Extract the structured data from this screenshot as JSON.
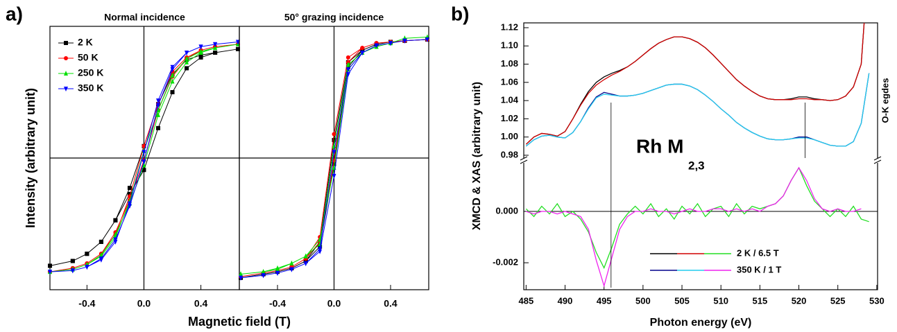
{
  "chart_data": [
    {
      "type": "hysteresis",
      "panel_label": "a)",
      "title": "Normal incidence",
      "x_label": "Magnetic field (T)",
      "y_label": "Intensity (arbitrary unit)",
      "xlim": [
        -0.66,
        0.67
      ],
      "ylim": [
        -1.1,
        1.1
      ],
      "xticks": [
        -0.4,
        {
          "value": 0,
          "label": "0.0"
        },
        0.4
      ],
      "x": [
        -0.66,
        -0.5,
        -0.4,
        -0.3,
        -0.2,
        -0.1,
        0,
        0.1,
        0.2,
        0.3,
        0.4,
        0.5,
        0.66,
        0.5,
        0.4,
        0.3,
        0.2,
        0.1,
        0,
        -0.1,
        -0.2,
        -0.3,
        -0.4,
        -0.5,
        -0.66
      ],
      "series": [
        {
          "name": "2 K",
          "color": "#000000",
          "marker": "square",
          "values": [
            -0.9,
            -0.86,
            -0.8,
            -0.7,
            -0.52,
            -0.3,
            -0.1,
            0.25,
            0.55,
            0.75,
            0.84,
            0.88,
            0.91,
            0.88,
            0.86,
            0.82,
            0.7,
            0.45,
            0.1,
            -0.25,
            -0.52,
            -0.7,
            -0.8,
            -0.86,
            -0.9
          ]
        },
        {
          "name": "50 K",
          "color": "#ff0000",
          "marker": "circle",
          "values": [
            -0.95,
            -0.92,
            -0.88,
            -0.8,
            -0.62,
            -0.35,
            -0.02,
            0.4,
            0.68,
            0.83,
            0.9,
            0.93,
            0.95,
            0.93,
            0.9,
            0.84,
            0.72,
            0.45,
            0.1,
            -0.32,
            -0.64,
            -0.8,
            -0.88,
            -0.92,
            -0.95
          ]
        },
        {
          "name": "250 K",
          "color": "#00e000",
          "marker": "triangle-up",
          "values": [
            -0.95,
            -0.93,
            -0.89,
            -0.81,
            -0.64,
            -0.38,
            -0.06,
            0.36,
            0.64,
            0.8,
            0.88,
            0.92,
            0.95,
            0.92,
            0.89,
            0.83,
            0.69,
            0.4,
            0.06,
            -0.36,
            -0.66,
            -0.82,
            -0.89,
            -0.93,
            -0.95
          ]
        },
        {
          "name": "350 K",
          "color": "#0000ff",
          "marker": "triangle-down",
          "values": [
            -0.95,
            -0.94,
            -0.91,
            -0.84,
            -0.68,
            -0.4,
            -0.03,
            0.44,
            0.74,
            0.88,
            0.93,
            0.95,
            0.97,
            0.95,
            0.93,
            0.88,
            0.76,
            0.48,
            0.05,
            -0.38,
            -0.7,
            -0.85,
            -0.91,
            -0.94,
            -0.95
          ]
        }
      ]
    },
    {
      "type": "hysteresis",
      "title": "50° grazing incidence",
      "xlim": [
        -0.67,
        0.67
      ],
      "ylim": [
        -1.1,
        1.1
      ],
      "xticks": [
        -0.4,
        {
          "value": 0,
          "label": "0.0"
        },
        0.4
      ],
      "x": [
        -0.66,
        -0.5,
        -0.4,
        -0.3,
        -0.2,
        -0.1,
        0,
        0.1,
        0.2,
        0.3,
        0.4,
        0.5,
        0.66,
        0.5,
        0.4,
        0.3,
        0.2,
        0.1,
        0,
        -0.1,
        -0.2,
        -0.3,
        -0.4,
        -0.5,
        -0.66
      ],
      "series": [
        {
          "color": "#000000",
          "marker": "square",
          "values": [
            -1.0,
            -0.97,
            -0.95,
            -0.92,
            -0.86,
            -0.74,
            -0.05,
            0.76,
            0.9,
            0.95,
            0.97,
            0.98,
            0.99,
            0.98,
            0.97,
            0.95,
            0.9,
            0.8,
            0.15,
            -0.7,
            -0.86,
            -0.92,
            -0.95,
            -0.97,
            -1.0
          ]
        },
        {
          "color": "#ff0000",
          "marker": "circle",
          "values": [
            -0.99,
            -0.96,
            -0.94,
            -0.91,
            -0.84,
            -0.7,
            -0.02,
            0.8,
            0.92,
            0.96,
            0.97,
            0.98,
            0.99,
            0.98,
            0.97,
            0.96,
            0.92,
            0.84,
            0.2,
            -0.66,
            -0.84,
            -0.91,
            -0.94,
            -0.96,
            -0.99
          ]
        },
        {
          "color": "#00e000",
          "marker": "triangle-up",
          "values": [
            -0.97,
            -0.95,
            -0.93,
            -0.88,
            -0.82,
            -0.68,
            -0.08,
            0.74,
            0.88,
            0.93,
            0.96,
            1.0,
            1.01,
            1.0,
            0.96,
            0.93,
            0.88,
            0.78,
            0.1,
            -0.72,
            -0.82,
            -0.88,
            -0.92,
            -0.95,
            -0.97
          ]
        },
        {
          "color": "#0000ff",
          "marker": "triangle-down",
          "values": [
            -1.0,
            -0.98,
            -0.96,
            -0.93,
            -0.88,
            -0.78,
            -0.15,
            0.7,
            0.88,
            0.94,
            0.96,
            0.98,
            0.99,
            0.98,
            0.96,
            0.94,
            0.88,
            0.74,
            0.05,
            -0.76,
            -0.88,
            -0.93,
            -0.96,
            -0.98,
            -1.0
          ]
        }
      ]
    },
    {
      "type": "spectra",
      "panel_label": "b)",
      "x_label": "Photon energy (eV)",
      "y_label": "XMCD & XAS (arbitrary unit)",
      "annotation": "Rh M",
      "annotation_subscript": "2,3",
      "edge_label": "O-K egdes",
      "xlim": [
        484.7,
        530.1
      ],
      "ylim": [
        0.9739,
        1.1253
      ],
      "y2lim": [
        -0.00305,
        0.00197
      ],
      "xticks": [
        485,
        490,
        495,
        500,
        505,
        510,
        515,
        520,
        525,
        530
      ],
      "yticks": [
        0.98,
        {
          "value": 1,
          "label": "1.00"
        },
        1.02,
        1.04,
        1.06,
        1.08,
        {
          "value": 1.1,
          "label": "1.10"
        },
        1.12
      ],
      "y2ticks": [
        -0.002,
        {
          "value": 0,
          "label": "0.000"
        }
      ],
      "energy_markers": [
        495.9,
        520.8
      ],
      "x": [
        485,
        486,
        487,
        488,
        489,
        490,
        491,
        492,
        493,
        494,
        495,
        496,
        497,
        498,
        499,
        500,
        501,
        502,
        503,
        504,
        505,
        506,
        507,
        508,
        509,
        510,
        511,
        512,
        513,
        514,
        515,
        516,
        517,
        518,
        519,
        520,
        521,
        522,
        523,
        524,
        525,
        526,
        527,
        528,
        529
      ],
      "series": [
        {
          "name": "2 K / 6.5 T",
          "colors": [
            "#000000",
            "#d00000",
            "#22dd22"
          ],
          "xas_a": [
            0.992,
            1.0,
            1.004,
            1.003,
            1.001,
            1.006,
            1.02,
            1.036,
            1.05,
            1.06,
            1.066,
            1.07,
            1.073,
            1.077,
            1.083,
            1.09,
            1.097,
            1.103,
            1.107,
            1.11,
            1.11,
            1.108,
            1.104,
            1.098,
            1.09,
            1.081,
            1.072,
            1.063,
            1.056,
            1.05,
            1.045,
            1.042,
            1.041,
            1.041,
            1.042,
            1.044,
            1.044,
            1.042,
            1.041,
            1.04,
            1.041,
            1.045,
            1.055,
            1.08,
            1.2
          ],
          "xas_b": [
            0.992,
            1.0,
            1.004,
            1.003,
            1.001,
            1.006,
            1.02,
            1.035,
            1.048,
            1.057,
            1.063,
            1.068,
            1.072,
            1.077,
            1.083,
            1.09,
            1.097,
            1.103,
            1.107,
            1.11,
            1.11,
            1.108,
            1.104,
            1.098,
            1.09,
            1.081,
            1.072,
            1.063,
            1.056,
            1.05,
            1.045,
            1.042,
            1.041,
            1.041,
            1.041,
            1.042,
            1.042,
            1.041,
            1.041,
            1.04,
            1.041,
            1.045,
            1.055,
            1.08,
            1.2
          ],
          "xmcd": [
            0.0001,
            -0.0002,
            0.0002,
            -0.0001,
            0.0003,
            -0.0002,
            0.0,
            -0.0003,
            -0.0008,
            -0.0016,
            -0.0022,
            -0.0014,
            -0.0005,
            -0.0001,
            0.0002,
            -0.0001,
            0.0003,
            -0.0002,
            0.0001,
            -0.0003,
            0.0002,
            -0.0001,
            0.0003,
            -0.0002,
            0.0001,
            0.0002,
            -0.0002,
            0.0003,
            -0.0001,
            0.0002,
            0.0001,
            0.0002,
            0.0003,
            0.0006,
            0.0012,
            0.0017,
            0.001,
            0.0004,
            0.0001,
            -0.0002,
            0.0001,
            -0.0002,
            0.0002,
            -0.0003,
            -0.0004
          ]
        },
        {
          "name": "350 K / 1 T",
          "colors": [
            "#00008b",
            "#22ccee",
            "#ee22ee"
          ],
          "xas_a": [
            0.99,
            0.997,
            1.001,
            1.002,
            1.0,
            0.999,
            1.005,
            1.017,
            1.032,
            1.044,
            1.049,
            1.047,
            1.045,
            1.045,
            1.046,
            1.048,
            1.051,
            1.054,
            1.057,
            1.058,
            1.058,
            1.056,
            1.052,
            1.046,
            1.039,
            1.031,
            1.024,
            1.016,
            1.01,
            1.005,
            1.001,
            0.998,
            0.997,
            0.997,
            0.998,
            1.0,
            1.0,
            0.997,
            0.994,
            0.991,
            0.99,
            0.99,
            0.995,
            1.015,
            1.07
          ],
          "xas_b": [
            0.99,
            0.997,
            1.001,
            1.002,
            1.0,
            0.999,
            1.005,
            1.017,
            1.031,
            1.043,
            1.047,
            1.046,
            1.045,
            1.045,
            1.046,
            1.048,
            1.051,
            1.054,
            1.057,
            1.058,
            1.058,
            1.056,
            1.052,
            1.046,
            1.039,
            1.031,
            1.024,
            1.016,
            1.01,
            1.005,
            1.001,
            0.998,
            0.997,
            0.997,
            0.998,
            0.999,
            0.999,
            0.997,
            0.994,
            0.991,
            0.99,
            0.99,
            0.995,
            1.015,
            1.07
          ],
          "xmcd": [
            0.0,
            -0.0001,
            0.0,
            0.0,
            -0.0001,
            0.0,
            -0.0001,
            -0.0002,
            -0.0007,
            -0.0019,
            -0.0029,
            -0.0018,
            -0.0007,
            -0.0002,
            0.0,
            0.0,
            0.0001,
            0.0,
            0.0,
            -0.0001,
            0.0,
            0.0001,
            0.0,
            0.0,
            0.0001,
            0.0001,
            0.0,
            0.0001,
            0.0,
            0.0001,
            0.0,
            0.0002,
            0.0003,
            0.0006,
            0.0012,
            0.0017,
            0.0012,
            0.0005,
            0.0001,
            0.0,
            0.0001,
            0.0,
            0.0,
            0.0001,
            null
          ]
        }
      ]
    }
  ]
}
